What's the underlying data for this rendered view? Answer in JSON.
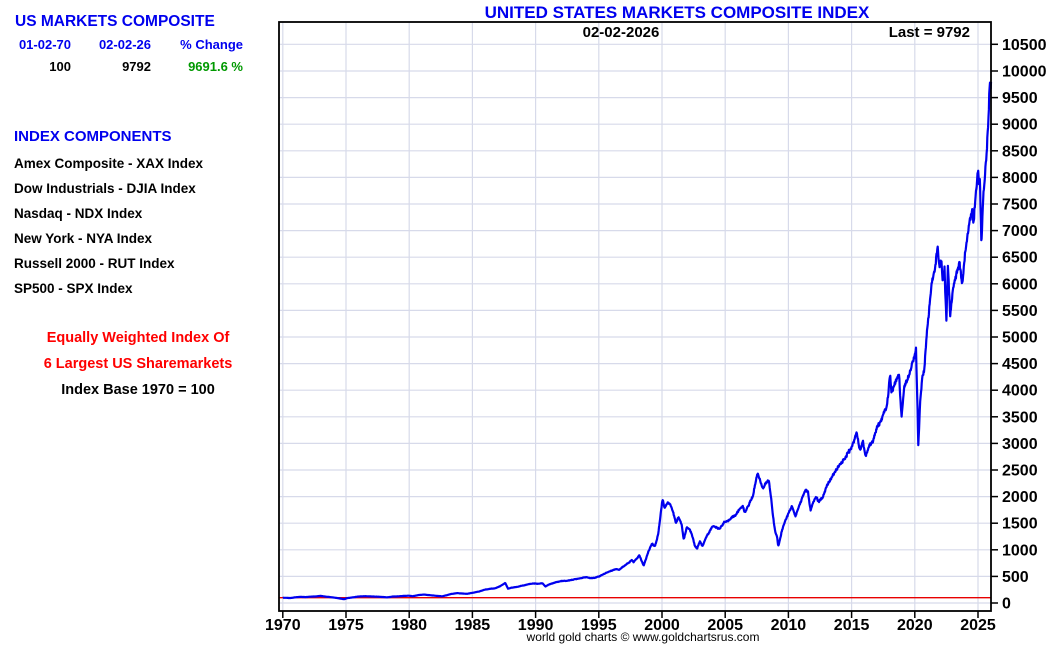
{
  "left_panel": {
    "title": "US MARKETS COMPOSITE",
    "table": {
      "headers": [
        "01-02-70",
        "02-02-26",
        "% Change"
      ],
      "values": [
        "100",
        "9792",
        "9691.6 %"
      ]
    },
    "components_title": "INDEX COMPONENTS",
    "components": [
      "Amex Composite - XAX Index",
      "Dow Industrials - DJIA Index",
      "Nasdaq - NDX Index",
      "New York - NYA Index",
      "Russell 2000 - RUT Index",
      "SP500 - SPX Index"
    ],
    "note_line1": "Equally Weighted Index Of",
    "note_line2": "6 Largest US Sharemarkets",
    "note_base": "Index Base 1970 = 100"
  },
  "chart": {
    "title": "UNITED STATES MARKETS COMPOSITE INDEX",
    "date_label": "02-02-2026",
    "last_label": "Last = 9792",
    "footer": "world gold charts © www.goldchartsrus.com"
  },
  "colors": {
    "heading_blue": "#0000ee",
    "gain_green": "#009900",
    "note_red": "#ff0000",
    "line_blue": "#0000ee",
    "grid_lavender": "#d7daea",
    "base_line_red": "#e80000"
  },
  "chart_data": {
    "type": "line",
    "title": "UNITED STATES MARKETS COMPOSITE INDEX",
    "xlabel": "",
    "ylabel": "",
    "grid": true,
    "legend": "none",
    "last_value": 9792,
    "xlim": [
      1969.7,
      2026.03
    ],
    "ylim": [
      -150,
      10920
    ],
    "x_ticks": [
      1970,
      1975,
      1980,
      1985,
      1990,
      1995,
      2000,
      2005,
      2010,
      2015,
      2020,
      2025
    ],
    "y_ticks": [
      0,
      500,
      1000,
      1500,
      2000,
      2500,
      3000,
      3500,
      4000,
      4500,
      5000,
      5500,
      6000,
      6500,
      7000,
      7500,
      8000,
      8500,
      9000,
      9500,
      10000,
      10500
    ],
    "base_line": {
      "value": 100,
      "label": "Index Base 1970 = 100"
    },
    "series": [
      {
        "name": "US Markets Composite",
        "points": [
          [
            1970.0,
            100
          ],
          [
            1970.3,
            97
          ],
          [
            1970.6,
            93
          ],
          [
            1971.0,
            108
          ],
          [
            1971.4,
            116
          ],
          [
            1971.8,
            112
          ],
          [
            1972.2,
            120
          ],
          [
            1972.6,
            124
          ],
          [
            1973.0,
            134
          ],
          [
            1973.4,
            120
          ],
          [
            1973.8,
            110
          ],
          [
            1974.2,
            97
          ],
          [
            1974.6,
            82
          ],
          [
            1974.85,
            72
          ],
          [
            1975.1,
            92
          ],
          [
            1975.5,
            105
          ],
          [
            1976.0,
            122
          ],
          [
            1976.5,
            128
          ],
          [
            1977.0,
            124
          ],
          [
            1977.5,
            118
          ],
          [
            1978.0,
            112
          ],
          [
            1978.25,
            106
          ],
          [
            1978.7,
            122
          ],
          [
            1979.0,
            124
          ],
          [
            1979.5,
            132
          ],
          [
            1980.0,
            138
          ],
          [
            1980.25,
            126
          ],
          [
            1980.8,
            152
          ],
          [
            1981.2,
            158
          ],
          [
            1981.6,
            148
          ],
          [
            1982.0,
            138
          ],
          [
            1982.6,
            126
          ],
          [
            1982.9,
            142
          ],
          [
            1983.3,
            168
          ],
          [
            1983.8,
            186
          ],
          [
            1984.2,
            178
          ],
          [
            1984.6,
            172
          ],
          [
            1985.0,
            192
          ],
          [
            1985.5,
            214
          ],
          [
            1986.0,
            252
          ],
          [
            1986.4,
            268
          ],
          [
            1986.8,
            276
          ],
          [
            1987.2,
            318
          ],
          [
            1987.6,
            375
          ],
          [
            1987.82,
            268
          ],
          [
            1988.1,
            288
          ],
          [
            1988.5,
            302
          ],
          [
            1989.0,
            328
          ],
          [
            1989.5,
            356
          ],
          [
            1989.9,
            368
          ],
          [
            1990.2,
            360
          ],
          [
            1990.55,
            372
          ],
          [
            1990.78,
            308
          ],
          [
            1991.0,
            342
          ],
          [
            1991.5,
            384
          ],
          [
            1992.0,
            412
          ],
          [
            1992.5,
            418
          ],
          [
            1993.0,
            442
          ],
          [
            1993.5,
            466
          ],
          [
            1994.0,
            488
          ],
          [
            1994.3,
            466
          ],
          [
            1994.7,
            476
          ],
          [
            1995.0,
            498
          ],
          [
            1995.5,
            556
          ],
          [
            1996.0,
            608
          ],
          [
            1996.4,
            642
          ],
          [
            1996.6,
            624
          ],
          [
            1997.0,
            696
          ],
          [
            1997.4,
            760
          ],
          [
            1997.6,
            806
          ],
          [
            1997.75,
            768
          ],
          [
            1998.0,
            830
          ],
          [
            1998.2,
            900
          ],
          [
            1998.55,
            700
          ],
          [
            1998.9,
            950
          ],
          [
            1999.2,
            1120
          ],
          [
            1999.45,
            1060
          ],
          [
            1999.7,
            1300
          ],
          [
            2000.05,
            1960
          ],
          [
            2000.2,
            1790
          ],
          [
            2000.45,
            1900
          ],
          [
            2000.7,
            1840
          ],
          [
            2000.9,
            1690
          ],
          [
            2001.1,
            1500
          ],
          [
            2001.3,
            1620
          ],
          [
            2001.55,
            1480
          ],
          [
            2001.72,
            1190
          ],
          [
            2001.95,
            1420
          ],
          [
            2002.2,
            1380
          ],
          [
            2002.4,
            1260
          ],
          [
            2002.6,
            1080
          ],
          [
            2002.78,
            1020
          ],
          [
            2003.0,
            1160
          ],
          [
            2003.2,
            1060
          ],
          [
            2003.5,
            1240
          ],
          [
            2003.8,
            1360
          ],
          [
            2004.0,
            1450
          ],
          [
            2004.3,
            1420
          ],
          [
            2004.6,
            1400
          ],
          [
            2004.9,
            1520
          ],
          [
            2005.2,
            1540
          ],
          [
            2005.5,
            1600
          ],
          [
            2005.8,
            1640
          ],
          [
            2006.1,
            1760
          ],
          [
            2006.4,
            1820
          ],
          [
            2006.55,
            1700
          ],
          [
            2006.9,
            1860
          ],
          [
            2007.2,
            2020
          ],
          [
            2007.55,
            2440
          ],
          [
            2007.8,
            2280
          ],
          [
            2008.0,
            2150
          ],
          [
            2008.2,
            2250
          ],
          [
            2008.45,
            2300
          ],
          [
            2008.6,
            2050
          ],
          [
            2008.75,
            1700
          ],
          [
            2008.95,
            1350
          ],
          [
            2009.1,
            1250
          ],
          [
            2009.2,
            1070
          ],
          [
            2009.45,
            1320
          ],
          [
            2009.7,
            1520
          ],
          [
            2010.0,
            1680
          ],
          [
            2010.3,
            1830
          ],
          [
            2010.55,
            1620
          ],
          [
            2010.8,
            1800
          ],
          [
            2011.1,
            1980
          ],
          [
            2011.35,
            2120
          ],
          [
            2011.55,
            2080
          ],
          [
            2011.75,
            1740
          ],
          [
            2011.95,
            1880
          ],
          [
            2012.2,
            1990
          ],
          [
            2012.4,
            1900
          ],
          [
            2012.7,
            1980
          ],
          [
            2013.0,
            2180
          ],
          [
            2013.4,
            2350
          ],
          [
            2013.8,
            2520
          ],
          [
            2014.2,
            2640
          ],
          [
            2014.5,
            2740
          ],
          [
            2014.8,
            2850
          ],
          [
            2015.1,
            2980
          ],
          [
            2015.4,
            3230
          ],
          [
            2015.65,
            2880
          ],
          [
            2015.9,
            3050
          ],
          [
            2016.1,
            2760
          ],
          [
            2016.4,
            2950
          ],
          [
            2016.7,
            3050
          ],
          [
            2017.0,
            3280
          ],
          [
            2017.4,
            3480
          ],
          [
            2017.8,
            3700
          ],
          [
            2018.05,
            4320
          ],
          [
            2018.15,
            3950
          ],
          [
            2018.35,
            4080
          ],
          [
            2018.6,
            4220
          ],
          [
            2018.75,
            4300
          ],
          [
            2018.95,
            3480
          ],
          [
            2019.15,
            4050
          ],
          [
            2019.4,
            4200
          ],
          [
            2019.6,
            4350
          ],
          [
            2019.9,
            4600
          ],
          [
            2020.1,
            4790
          ],
          [
            2020.2,
            3800
          ],
          [
            2020.28,
            2950
          ],
          [
            2020.45,
            3900
          ],
          [
            2020.6,
            4250
          ],
          [
            2020.75,
            4400
          ],
          [
            2020.9,
            4900
          ],
          [
            2021.1,
            5400
          ],
          [
            2021.3,
            5900
          ],
          [
            2021.5,
            6200
          ],
          [
            2021.65,
            6350
          ],
          [
            2021.8,
            6700
          ],
          [
            2021.95,
            6300
          ],
          [
            2022.1,
            6500
          ],
          [
            2022.2,
            6000
          ],
          [
            2022.35,
            6250
          ],
          [
            2022.5,
            5320
          ],
          [
            2022.62,
            6380
          ],
          [
            2022.8,
            5420
          ],
          [
            2022.95,
            5750
          ],
          [
            2023.1,
            6000
          ],
          [
            2023.3,
            6200
          ],
          [
            2023.55,
            6400
          ],
          [
            2023.75,
            5980
          ],
          [
            2023.95,
            6480
          ],
          [
            2024.15,
            6900
          ],
          [
            2024.35,
            7200
          ],
          [
            2024.55,
            7350
          ],
          [
            2024.65,
            7150
          ],
          [
            2024.85,
            7700
          ],
          [
            2025.0,
            8150
          ],
          [
            2025.08,
            7900
          ],
          [
            2025.15,
            8080
          ],
          [
            2025.27,
            6700
          ],
          [
            2025.4,
            7550
          ],
          [
            2025.55,
            8050
          ],
          [
            2025.68,
            8500
          ],
          [
            2025.8,
            9000
          ],
          [
            2025.92,
            9700
          ],
          [
            2025.97,
            9880
          ],
          [
            2026.0,
            9640
          ],
          [
            2026.03,
            9792
          ]
        ]
      }
    ]
  }
}
